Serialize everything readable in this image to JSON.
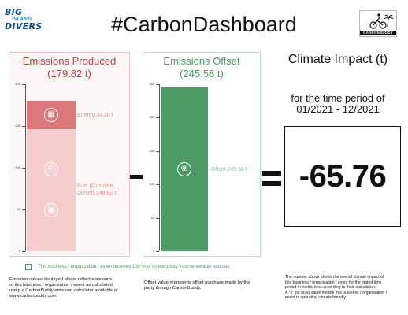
{
  "header": {
    "title": "#CarbonDashboard",
    "logo_left": {
      "line1": "BIG",
      "line2": "ISLAND",
      "line3": "DIVERS"
    },
    "logo_right": {
      "brand": "CARBONBUDDY"
    }
  },
  "produced": {
    "title_line1": "Emissions Produced",
    "title_line2": "(179.82 t)",
    "axis_ticks": [
      "0",
      "50",
      "100",
      "150",
      "200"
    ],
    "axis_max": 200,
    "segments": [
      {
        "label": "Fuel (Gasoline, Diesel) 146.62 t",
        "value": 146.62,
        "color": "#f6cccc",
        "icons": [
          "ship-icon",
          "car-icon"
        ]
      },
      {
        "label": "Energy 33.20 t",
        "value": 33.2,
        "color": "#dd787c",
        "icons": [
          "building-icon"
        ]
      }
    ],
    "accent": "#c8393f"
  },
  "offset": {
    "title_line1": "Emissions Offset",
    "title_line2": "(245.58 t)",
    "axis_ticks": [
      "0",
      "50",
      "100",
      "150",
      "200",
      "250"
    ],
    "axis_max": 250,
    "segments": [
      {
        "label": "Offset 245.58 t",
        "value": 245.58,
        "color": "#4e9a66",
        "icons": [
          "offset-badge-icon"
        ]
      }
    ],
    "accent": "#4a9b61"
  },
  "impact": {
    "title": "Climate Impact (t)",
    "period_line1": "for the time period of",
    "period_line2": "01/2021 - 12/2021",
    "value": "-65.76"
  },
  "renewable_note": "This business / organization / event receives 100 % of its electricity from renewable sources",
  "notes": {
    "left": [
      "Emission values displayed above reflect emissions",
      "of this business / organization / event as calculated",
      "using a CarbonBuddy emission calculator available at",
      "www.carbonbuddy.com"
    ],
    "middle": [
      "Offset value represents offset purchase made by the",
      "party through CarbonBuddy."
    ],
    "right": [
      "The number above shows the overall climate impact of",
      "this business / organisation / event for the stated time",
      "period in metric tons according to their calculation.",
      "A \"0\" (or less) value means this business / organisation /",
      "event is operating climate friendly."
    ]
  }
}
